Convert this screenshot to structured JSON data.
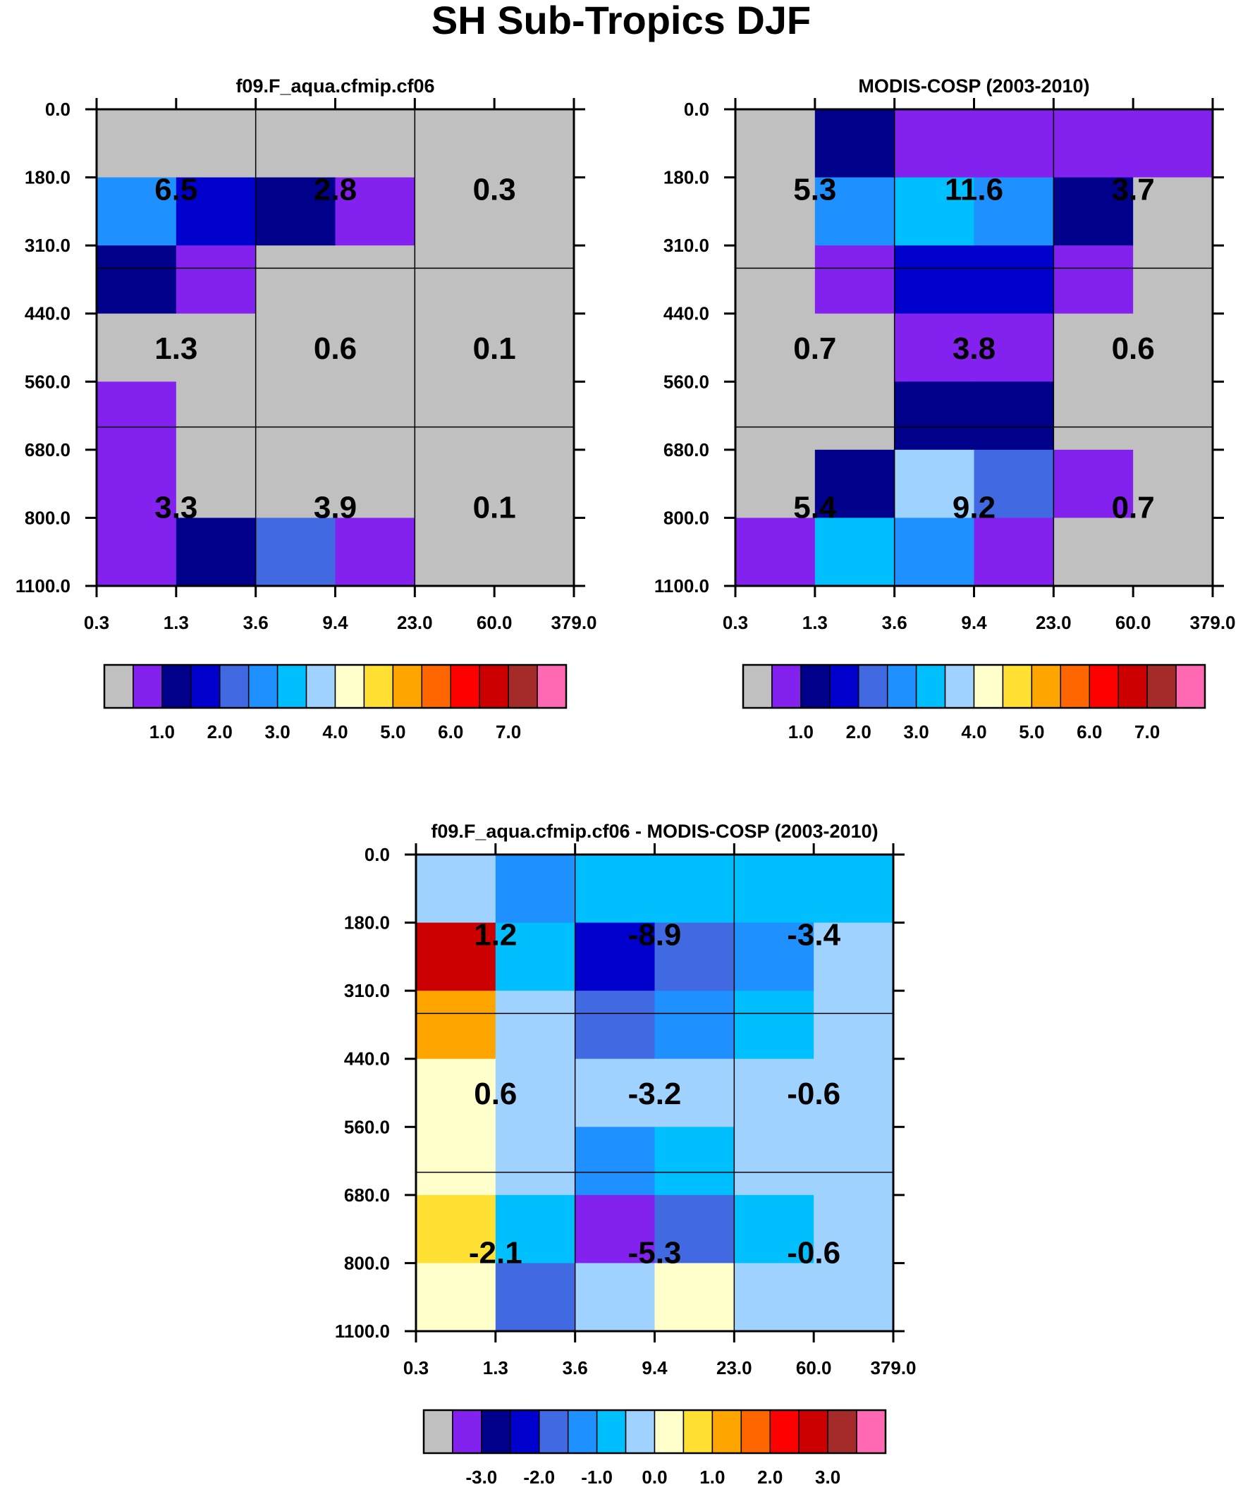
{
  "title": "SH Sub-Tropics DJF",
  "chart_data": [
    {
      "type": "heatmap",
      "title": "f09.F_aqua.cfmip.cf06",
      "x_ticks": [
        "0.3",
        "1.3",
        "3.6",
        "9.4",
        "23.0",
        "60.0",
        "379.0"
      ],
      "y_ticks": [
        "0.0",
        "180.0",
        "310.0",
        "440.0",
        "560.0",
        "680.0",
        "800.0",
        "1100.0"
      ],
      "grid_cols": 6,
      "grid_rows": 7,
      "cells": [
        [
          0,
          0,
          0,
          0,
          0,
          0
        ],
        [
          5,
          3,
          2,
          1,
          0,
          0
        ],
        [
          2,
          1,
          0,
          0,
          0,
          0
        ],
        [
          0,
          0,
          0,
          0,
          0,
          0
        ],
        [
          1,
          0,
          0,
          0,
          0,
          0
        ],
        [
          1,
          0,
          0,
          0,
          0,
          0
        ],
        [
          1,
          2,
          4,
          1,
          0,
          0
        ]
      ],
      "box_values": [
        [
          "6.5",
          "2.8",
          "0.3"
        ],
        [
          "1.3",
          "0.6",
          "0.1"
        ],
        [
          "3.3",
          "3.9",
          "0.1"
        ]
      ],
      "colorbar": {
        "colors": [
          "#c0c0c0",
          "#8322ee",
          "#00008b",
          "#0000cd",
          "#4169e1",
          "#1e90ff",
          "#00bfff",
          "#a0d2ff",
          "#ffffcc",
          "#ffe033",
          "#ffa500",
          "#ff6600",
          "#ff0000",
          "#cc0000",
          "#a52a2a",
          "#ff69b4"
        ],
        "labels": [
          "1.0",
          "2.0",
          "3.0",
          "4.0",
          "5.0",
          "6.0",
          "7.0"
        ],
        "label_after_box": [
          2,
          4,
          6,
          8,
          10,
          12,
          14
        ]
      }
    },
    {
      "type": "heatmap",
      "title": "MODIS-COSP (2003-2010)",
      "x_ticks": [
        "0.3",
        "1.3",
        "3.6",
        "9.4",
        "23.0",
        "60.0",
        "379.0"
      ],
      "y_ticks": [
        "0.0",
        "180.0",
        "310.0",
        "440.0",
        "560.0",
        "680.0",
        "800.0",
        "1100.0"
      ],
      "grid_cols": 6,
      "grid_rows": 7,
      "cells": [
        [
          0,
          2,
          1,
          1,
          1,
          1
        ],
        [
          0,
          5,
          6,
          5,
          2,
          0
        ],
        [
          0,
          1,
          3,
          3,
          1,
          0
        ],
        [
          0,
          0,
          1,
          1,
          0,
          0
        ],
        [
          0,
          0,
          2,
          2,
          0,
          0
        ],
        [
          0,
          2,
          7,
          4,
          1,
          0
        ],
        [
          1,
          6,
          5,
          1,
          0,
          0
        ]
      ],
      "box_values": [
        [
          "5.3",
          "11.6",
          "3.7"
        ],
        [
          "0.7",
          "3.8",
          "0.6"
        ],
        [
          "5.4",
          "9.2",
          "0.7"
        ]
      ],
      "colorbar": {
        "colors": [
          "#c0c0c0",
          "#8322ee",
          "#00008b",
          "#0000cd",
          "#4169e1",
          "#1e90ff",
          "#00bfff",
          "#a0d2ff",
          "#ffffcc",
          "#ffe033",
          "#ffa500",
          "#ff6600",
          "#ff0000",
          "#cc0000",
          "#a52a2a",
          "#ff69b4"
        ],
        "labels": [
          "1.0",
          "2.0",
          "3.0",
          "4.0",
          "5.0",
          "6.0",
          "7.0"
        ],
        "label_after_box": [
          2,
          4,
          6,
          8,
          10,
          12,
          14
        ]
      }
    },
    {
      "type": "heatmap",
      "title": "f09.F_aqua.cfmip.cf06 - MODIS-COSP (2003-2010)",
      "x_ticks": [
        "0.3",
        "1.3",
        "3.6",
        "9.4",
        "23.0",
        "60.0",
        "379.0"
      ],
      "y_ticks": [
        "0.0",
        "180.0",
        "310.0",
        "440.0",
        "560.0",
        "680.0",
        "800.0",
        "1100.0"
      ],
      "grid_cols": 6,
      "grid_rows": 7,
      "cells": [
        [
          7,
          5,
          6,
          6,
          6,
          6
        ],
        [
          13,
          6,
          3,
          4,
          5,
          7
        ],
        [
          10,
          7,
          4,
          5,
          6,
          7
        ],
        [
          8,
          7,
          7,
          7,
          7,
          7
        ],
        [
          8,
          7,
          5,
          6,
          7,
          7
        ],
        [
          9,
          6,
          1,
          4,
          6,
          7
        ],
        [
          8,
          4,
          7,
          8,
          7,
          7
        ]
      ],
      "box_values": [
        [
          "1.2",
          "-8.9",
          "-3.4"
        ],
        [
          "0.6",
          "-3.2",
          "-0.6"
        ],
        [
          "-2.1",
          "-5.3",
          "-0.6"
        ]
      ],
      "colorbar": {
        "colors": [
          "#c0c0c0",
          "#8322ee",
          "#00008b",
          "#0000cd",
          "#4169e1",
          "#1e90ff",
          "#00bfff",
          "#a0d2ff",
          "#ffffcc",
          "#ffe033",
          "#ffa500",
          "#ff6600",
          "#ff0000",
          "#cc0000",
          "#a52a2a",
          "#ff69b4"
        ],
        "labels": [
          "-3.0",
          "-2.0",
          "-1.0",
          "0.0",
          "1.0",
          "2.0",
          "3.0"
        ],
        "label_after_box": [
          2,
          4,
          6,
          8,
          10,
          12,
          14
        ]
      }
    }
  ]
}
